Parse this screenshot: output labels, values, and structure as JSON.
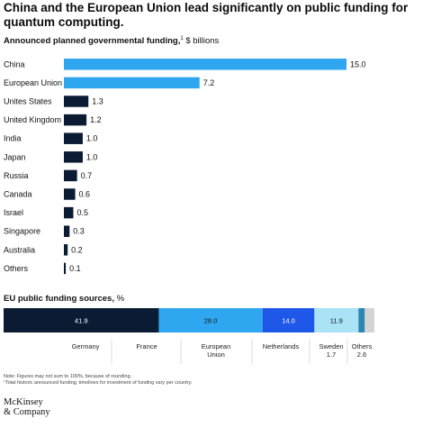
{
  "title": "China and the European Union lead significantly on public funding for quantum computing.",
  "subtitle_bold": "Announced planned governmental funding,",
  "subtitle_sup": "1",
  "subtitle_rest": " $ billions",
  "stack_title_bold": "EU public funding sources,",
  "stack_title_rest": " %",
  "notes": [
    "Note: Figures may not sum to 100%, because of rounding.",
    "¹Total historic announced funding; timelines for investment of funding vary per country."
  ],
  "logo": [
    "McKinsey",
    "& Company"
  ],
  "colors": {
    "light_blue": "#2fa7f0",
    "navy": "#0b1b33",
    "blue": "#1f57e8",
    "pale_blue": "#a9e3f5",
    "teal": "#2a86b3",
    "gray": "#d4d4d4"
  },
  "chart_data": [
    {
      "type": "bar",
      "orientation": "horizontal",
      "title": "Announced planned governmental funding, $ billions",
      "categories": [
        "China",
        "European Union",
        "Unites States",
        "United Kingdom",
        "India",
        "Japan",
        "Russia",
        "Canada",
        "Israel",
        "Singapore",
        "Australia",
        "Others"
      ],
      "values": [
        15.0,
        7.2,
        1.3,
        1.2,
        1.0,
        1.0,
        0.7,
        0.6,
        0.5,
        0.3,
        0.2,
        0.1
      ],
      "value_labels": [
        "15.0",
        "7.2",
        "1.3",
        "1.2",
        "1.0",
        "1.0",
        "0.7",
        "0.6",
        "0.5",
        "0.3",
        "0.2",
        "0.1"
      ],
      "highlighted_colors": [
        "light_blue",
        "light_blue",
        "navy",
        "navy",
        "navy",
        "navy",
        "navy",
        "navy",
        "navy",
        "navy",
        "navy",
        "navy"
      ],
      "xlim": [
        0,
        15
      ],
      "grid": false,
      "legend": "none"
    },
    {
      "type": "bar",
      "orientation": "stacked-horizontal",
      "title": "EU public funding sources, %",
      "segments": [
        {
          "name": "Germany",
          "value": 41.9,
          "label": "41.9",
          "color": "navy",
          "text_color": "#ffffff"
        },
        {
          "name": "France",
          "value": 28.0,
          "label": "28.0",
          "color": "light_blue",
          "text_color": "#111111"
        },
        {
          "name": "European Union",
          "value": 14.0,
          "label": "14.0",
          "color": "blue",
          "text_color": "#ffffff"
        },
        {
          "name": "Netherlands",
          "value": 11.9,
          "label": "11.9",
          "color": "pale_blue",
          "text_color": "#111111"
        },
        {
          "name": "Sweden",
          "value": 1.7,
          "label": "",
          "color": "teal",
          "text_color": "#111111"
        },
        {
          "name": "Others",
          "value": 2.6,
          "label": "",
          "color": "gray",
          "text_color": "#111111"
        }
      ],
      "bottom_labels": [
        {
          "lines": [
            "Germany"
          ]
        },
        {
          "lines": [
            "France"
          ]
        },
        {
          "lines": [
            "European",
            "Union"
          ]
        },
        {
          "lines": [
            "Netherlands"
          ]
        },
        {
          "lines": [
            "Sweden",
            "1.7"
          ]
        },
        {
          "lines": [
            "Others",
            "2.6"
          ]
        }
      ]
    }
  ]
}
